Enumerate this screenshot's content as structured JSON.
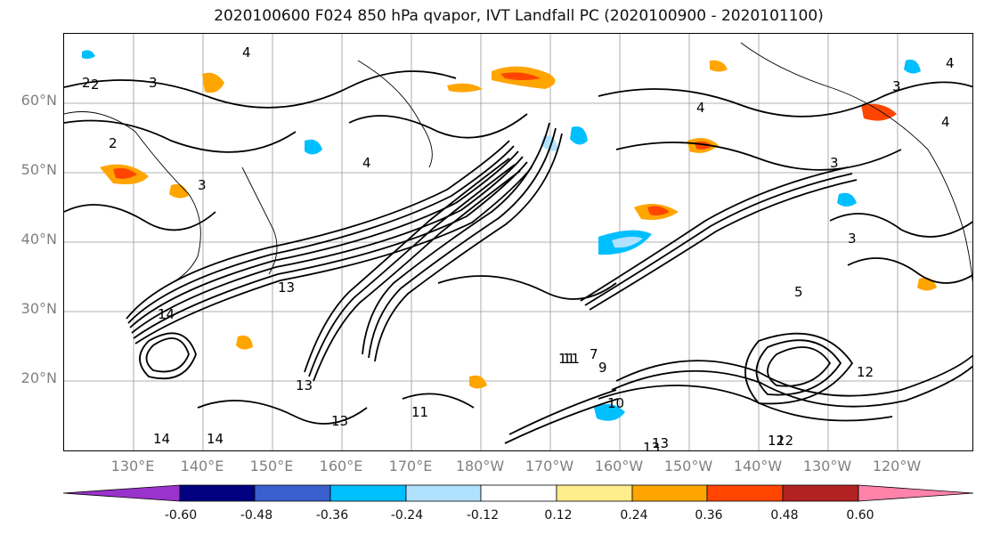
{
  "title": "2020100600 F024 850 hPa qvapor, IVT Landfall PC (2020100900 - 2020101100)",
  "lat_labels": [
    "60°N",
    "50°N",
    "40°N",
    "30°N",
    "20°N"
  ],
  "lon_labels": [
    "130°E",
    "140°E",
    "150°E",
    "160°E",
    "170°E",
    "180°W",
    "170°W",
    "160°W",
    "150°W",
    "140°W",
    "130°W",
    "120°W"
  ],
  "colorbar": {
    "tick_labels": [
      "-0.60",
      "-0.48",
      "-0.36",
      "-0.24",
      "-0.12",
      "0.12",
      "0.24",
      "0.36",
      "0.48",
      "0.60"
    ],
    "colors": [
      "#9a32cd",
      "#000080",
      "#3a5fcd",
      "#00bfff",
      "#b0e2ff",
      "#ffffff",
      "#ffec8b",
      "#ffa500",
      "#ff4500",
      "#b22222",
      "#ff82ab"
    ]
  },
  "contour_labels": [
    "2",
    "3",
    "2",
    "4",
    "3",
    "4",
    "4",
    "3",
    "3",
    "4",
    "4",
    "3",
    "5",
    "13",
    "13",
    "14",
    "14",
    "13",
    "11",
    "11",
    "12",
    "12",
    "13",
    "13",
    "12",
    "14",
    "9",
    "11",
    "10",
    "7",
    "2"
  ]
}
